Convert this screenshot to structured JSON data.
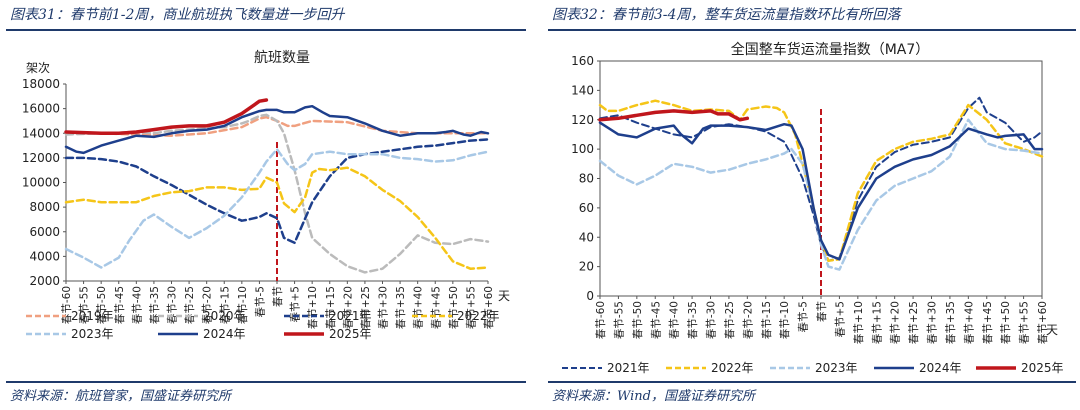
{
  "panels": [
    {
      "caption": "图表31：春节前1-2周，商业航班执飞数量进一步回升",
      "source": "资料来源：航班管家，国盛证券研究所"
    },
    {
      "caption": "图表32：春节前3-4周，整车货运流量指数环比有所回落",
      "source": "资料来源：Wind，国盛证券研究所"
    }
  ],
  "chart_data": [
    {
      "type": "line",
      "title": "航班数量",
      "ylabel": "架次",
      "xunit": "天",
      "ylim": [
        2000,
        18000
      ],
      "yticks": [
        2000,
        4000,
        6000,
        8000,
        10000,
        12000,
        14000,
        16000,
        18000
      ],
      "xlim": [
        -60,
        60
      ],
      "xticks": [
        -60,
        -55,
        -50,
        -45,
        -40,
        -35,
        -30,
        -25,
        -20,
        -15,
        -10,
        -5,
        0,
        5,
        10,
        15,
        20,
        25,
        30,
        35,
        40,
        45,
        50,
        55,
        60
      ],
      "xtick_labels": [
        "春节-60",
        "春节-55",
        "春节-50",
        "春节-45",
        "春节-40",
        "春节-35",
        "春节-30",
        "春节-25",
        "春节-20",
        "春节-15",
        "春节-10",
        "春节-5",
        "春节",
        "春节+5",
        "春节+10",
        "春节+15",
        "春节+20",
        "春节+25",
        "春节+30",
        "春节+35",
        "春节+40",
        "春节+45",
        "春节+50",
        "春节+55",
        "春节+60"
      ],
      "legend": "bottom",
      "series": [
        {
          "name": "2019年",
          "color": "#f0a080",
          "dash": "dash",
          "width": 2.5,
          "x": [
            -60,
            -50,
            -40,
            -30,
            -20,
            -10,
            -5,
            -3,
            0,
            3,
            5,
            10,
            20,
            30,
            40,
            50,
            60
          ],
          "y": [
            14000,
            14000,
            13900,
            13800,
            14000,
            14500,
            15200,
            15300,
            15000,
            14600,
            14600,
            15000,
            14900,
            14200,
            14000,
            14000,
            14000
          ]
        },
        {
          "name": "2020年",
          "color": "#bbbbbb",
          "dash": "dash",
          "width": 2.5,
          "x": [
            -60,
            -50,
            -40,
            -35,
            -30,
            -25,
            -20,
            -15,
            -10,
            -8,
            -5,
            -3,
            0,
            2,
            5,
            8,
            10,
            15,
            20,
            25,
            30,
            35,
            40,
            45,
            50,
            55,
            60
          ],
          "y": [
            13900,
            14000,
            14100,
            14000,
            14200,
            14300,
            14400,
            14500,
            14800,
            15000,
            15400,
            15500,
            15000,
            14000,
            11000,
            7500,
            5500,
            4200,
            3200,
            2700,
            3000,
            4200,
            5700,
            5100,
            5000,
            5400,
            5200
          ]
        },
        {
          "name": "2021年",
          "color": "#1e3f8c",
          "dash": "dash",
          "width": 2.5,
          "x": [
            -60,
            -55,
            -50,
            -45,
            -40,
            -35,
            -30,
            -25,
            -20,
            -15,
            -10,
            -8,
            -5,
            -3,
            0,
            2,
            5,
            10,
            15,
            20,
            25,
            30,
            35,
            40,
            45,
            50,
            55,
            60
          ],
          "y": [
            12000,
            12000,
            11900,
            11700,
            11300,
            10500,
            9800,
            9000,
            8200,
            7500,
            6900,
            7000,
            7200,
            7500,
            7100,
            5500,
            5100,
            8400,
            10500,
            12000,
            12300,
            12500,
            12700,
            12900,
            13000,
            13200,
            13400,
            13500
          ]
        },
        {
          "name": "2022年",
          "color": "#f5c518",
          "dash": "dash",
          "width": 2.5,
          "x": [
            -60,
            -55,
            -50,
            -45,
            -40,
            -35,
            -30,
            -25,
            -20,
            -15,
            -10,
            -5,
            -3,
            0,
            2,
            5,
            8,
            10,
            12,
            15,
            20,
            25,
            30,
            35,
            40,
            45,
            50,
            55,
            60
          ],
          "y": [
            8400,
            8600,
            8400,
            8400,
            8400,
            8900,
            9200,
            9300,
            9600,
            9600,
            9400,
            9500,
            10400,
            10000,
            8300,
            7600,
            8800,
            10800,
            11100,
            11000,
            11200,
            10500,
            9400,
            8500,
            7200,
            5500,
            3600,
            3000,
            3100
          ]
        },
        {
          "name": "2023年",
          "color": "#a8c8e6",
          "dash": "dash",
          "width": 2.5,
          "x": [
            -60,
            -55,
            -50,
            -45,
            -42,
            -38,
            -35,
            -30,
            -25,
            -20,
            -15,
            -10,
            -5,
            -3,
            0,
            3,
            5,
            8,
            10,
            15,
            20,
            25,
            30,
            35,
            40,
            45,
            50,
            55,
            60
          ],
          "y": [
            4600,
            3900,
            3100,
            3900,
            5300,
            6900,
            7400,
            6400,
            5500,
            6300,
            7300,
            8800,
            10800,
            11700,
            12700,
            11500,
            11000,
            11500,
            12300,
            12500,
            12300,
            12300,
            12300,
            12000,
            11900,
            11700,
            11800,
            12200,
            12500
          ]
        },
        {
          "name": "2024年",
          "color": "#1e3f8c",
          "dash": "solid",
          "width": 2.5,
          "x": [
            -60,
            -57,
            -55,
            -50,
            -45,
            -40,
            -35,
            -30,
            -25,
            -20,
            -15,
            -10,
            -5,
            -3,
            0,
            2,
            5,
            8,
            10,
            13,
            15,
            20,
            25,
            30,
            35,
            40,
            45,
            48,
            50,
            53,
            55,
            58,
            60
          ],
          "y": [
            12900,
            12500,
            12400,
            13000,
            13400,
            13800,
            13700,
            14000,
            14200,
            14300,
            14600,
            15300,
            15800,
            15900,
            15900,
            15700,
            15700,
            16100,
            16200,
            15700,
            15400,
            15300,
            14800,
            14200,
            13800,
            14000,
            14000,
            14100,
            14200,
            13900,
            13800,
            14100,
            14000
          ]
        },
        {
          "name": "2025年",
          "color": "#c0161c",
          "dash": "solid",
          "width": 3.5,
          "x": [
            -60,
            -50,
            -45,
            -40,
            -35,
            -30,
            -25,
            -20,
            -15,
            -10,
            -7,
            -5,
            -3
          ],
          "y": [
            14100,
            14000,
            14000,
            14100,
            14300,
            14500,
            14600,
            14600,
            14900,
            15600,
            16200,
            16600,
            16700
          ]
        }
      ]
    },
    {
      "type": "line",
      "title": "全国整车货运流量指数（MA7）",
      "xunit": "天",
      "ylim": [
        0,
        160
      ],
      "yticks": [
        0,
        20,
        40,
        60,
        80,
        100,
        120,
        140,
        160
      ],
      "xlim": [
        -60,
        60
      ],
      "xticks": [
        -60,
        -55,
        -50,
        -45,
        -40,
        -35,
        -30,
        -25,
        -20,
        -15,
        -10,
        -5,
        0,
        5,
        10,
        15,
        20,
        25,
        30,
        35,
        40,
        45,
        50,
        55,
        60
      ],
      "xtick_labels": [
        "春节-60",
        "春节-55",
        "春节-50",
        "春节-45",
        "春节-40",
        "春节-35",
        "春节-30",
        "春节-25",
        "春节-20",
        "春节-15",
        "春节-10",
        "春节-5",
        "春节",
        "春节+5",
        "春节+10",
        "春节+15",
        "春节+20",
        "春节+25",
        "春节+30",
        "春节+35",
        "春节+40",
        "春节+45",
        "春节+50",
        "春节+55",
        "春节+60"
      ],
      "legend": "bottom",
      "series": [
        {
          "name": "2021年",
          "color": "#1e3f8c",
          "dash": "dash",
          "width": 2,
          "x": [
            -60,
            -55,
            -50,
            -45,
            -40,
            -35,
            -32,
            -30,
            -25,
            -20,
            -15,
            -10,
            -8,
            -5,
            -2,
            0,
            2,
            5,
            10,
            15,
            20,
            25,
            30,
            35,
            40,
            43,
            45,
            50,
            53,
            55,
            58,
            60
          ],
          "y": [
            121,
            123,
            118,
            114,
            110,
            108,
            112,
            115,
            117,
            115,
            112,
            105,
            96,
            80,
            55,
            35,
            24,
            26,
            65,
            88,
            98,
            103,
            105,
            108,
            128,
            135,
            125,
            118,
            110,
            105,
            108,
            112
          ]
        },
        {
          "name": "2022年",
          "color": "#f5c518",
          "dash": "dash",
          "width": 2.5,
          "x": [
            -60,
            -58,
            -55,
            -50,
            -45,
            -40,
            -35,
            -30,
            -25,
            -22,
            -20,
            -15,
            -12,
            -10,
            -7,
            -5,
            -2,
            0,
            2,
            5,
            10,
            15,
            20,
            25,
            30,
            35,
            40,
            45,
            50,
            55,
            58,
            60
          ],
          "y": [
            130,
            126,
            126,
            130,
            133,
            130,
            126,
            127,
            126,
            120,
            127,
            129,
            128,
            125,
            110,
            90,
            60,
            38,
            24,
            25,
            70,
            92,
            100,
            105,
            107,
            110,
            130,
            120,
            104,
            100,
            97,
            95
          ]
        },
        {
          "name": "2023年",
          "color": "#a8c8e6",
          "dash": "dash",
          "width": 2.5,
          "x": [
            -60,
            -55,
            -50,
            -45,
            -40,
            -35,
            -30,
            -25,
            -20,
            -15,
            -10,
            -8,
            -5,
            -2,
            0,
            2,
            5,
            10,
            15,
            20,
            25,
            30,
            35,
            40,
            45,
            50,
            55,
            60
          ],
          "y": [
            92,
            82,
            76,
            82,
            90,
            88,
            84,
            86,
            90,
            93,
            97,
            100,
            90,
            60,
            35,
            20,
            18,
            45,
            65,
            75,
            80,
            85,
            95,
            120,
            104,
            100,
            99,
            97
          ]
        },
        {
          "name": "2024年",
          "color": "#1e3f8c",
          "dash": "solid",
          "width": 2.5,
          "x": [
            -60,
            -55,
            -50,
            -45,
            -40,
            -38,
            -35,
            -32,
            -30,
            -25,
            -20,
            -15,
            -10,
            -8,
            -5,
            -2,
            0,
            2,
            5,
            10,
            15,
            20,
            25,
            30,
            35,
            40,
            45,
            48,
            50,
            55,
            58,
            60
          ],
          "y": [
            118,
            110,
            108,
            114,
            116,
            110,
            104,
            114,
            116,
            116,
            115,
            113,
            117,
            116,
            100,
            60,
            38,
            28,
            25,
            60,
            80,
            88,
            93,
            96,
            102,
            114,
            110,
            108,
            109,
            110,
            100,
            100
          ]
        },
        {
          "name": "2025年",
          "color": "#c0161c",
          "dash": "solid",
          "width": 3.5,
          "x": [
            -60,
            -55,
            -50,
            -45,
            -40,
            -35,
            -30,
            -28,
            -25,
            -22,
            -20
          ],
          "y": [
            120,
            121,
            123,
            125,
            126,
            125,
            126,
            124,
            124,
            120,
            121
          ]
        }
      ]
    }
  ]
}
